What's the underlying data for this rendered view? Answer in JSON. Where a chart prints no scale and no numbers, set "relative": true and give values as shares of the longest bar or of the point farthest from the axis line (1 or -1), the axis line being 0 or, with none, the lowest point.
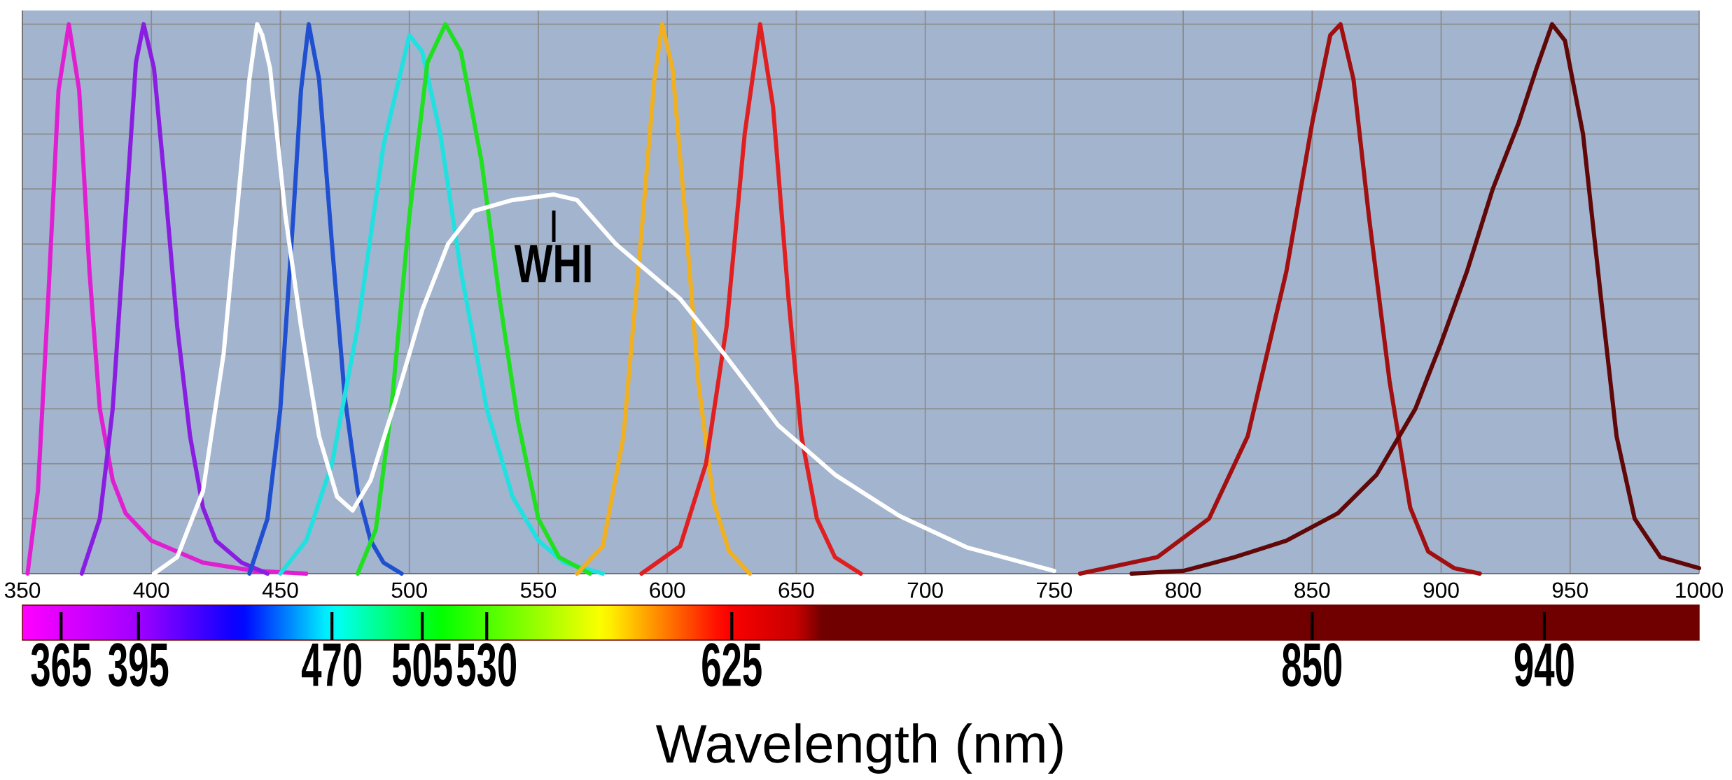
{
  "chart_data": {
    "type": "line",
    "relative": true,
    "xlabel": "Wavelength (nm)",
    "xlim": [
      350,
      1000
    ],
    "xticks": [
      350,
      400,
      450,
      500,
      550,
      600,
      650,
      700,
      750,
      800,
      850,
      900,
      950,
      1000
    ],
    "grid": true,
    "marker": "none",
    "line_style": "solid",
    "x2lim": [
      350,
      1000
    ],
    "x2ticks": [
      365,
      395,
      470,
      505,
      530,
      625,
      850,
      940
    ],
    "annotations": [
      {
        "text": "WHI",
        "x": 556,
        "y": 0.68
      }
    ],
    "series": [
      {
        "color": "#e020d0",
        "x": [
          352,
          356,
          360,
          364,
          368,
          372,
          376,
          380,
          385,
          390,
          400,
          420,
          440,
          460
        ],
        "values": [
          0,
          0.15,
          0.5,
          0.88,
          1.0,
          0.88,
          0.55,
          0.3,
          0.17,
          0.11,
          0.06,
          0.02,
          0.005,
          0
        ]
      },
      {
        "color": "#8a1ee0",
        "x": [
          373,
          380,
          385,
          390,
          394,
          397,
          401,
          405,
          410,
          415,
          420,
          425,
          435,
          445
        ],
        "values": [
          0,
          0.1,
          0.3,
          0.65,
          0.93,
          1.0,
          0.92,
          0.72,
          0.45,
          0.25,
          0.12,
          0.06,
          0.02,
          0
        ]
      },
      {
        "color": "#2050d0",
        "x": [
          438,
          445,
          450,
          455,
          458,
          461,
          465,
          470,
          475,
          480,
          485,
          490,
          497
        ],
        "values": [
          0,
          0.1,
          0.3,
          0.65,
          0.88,
          1.0,
          0.9,
          0.6,
          0.32,
          0.15,
          0.06,
          0.02,
          0
        ]
      },
      {
        "color": "#20e0e0",
        "x": [
          450,
          460,
          470,
          480,
          490,
          500,
          505,
          512,
          520,
          530,
          540,
          550,
          560,
          575
        ],
        "values": [
          0,
          0.06,
          0.2,
          0.45,
          0.78,
          0.98,
          0.95,
          0.8,
          0.55,
          0.3,
          0.14,
          0.06,
          0.02,
          0
        ]
      },
      {
        "color": "#20e020",
        "x": [
          480,
          487,
          493,
          500,
          507,
          514,
          520,
          528,
          535,
          542,
          550,
          558,
          570
        ],
        "values": [
          0,
          0.08,
          0.3,
          0.65,
          0.93,
          1.0,
          0.95,
          0.75,
          0.5,
          0.28,
          0.1,
          0.03,
          0
        ]
      },
      {
        "color": "#f0b020",
        "x": [
          565,
          575,
          583,
          590,
          595,
          598,
          602,
          607,
          612,
          618,
          624,
          632
        ],
        "values": [
          0,
          0.05,
          0.25,
          0.62,
          0.9,
          1.0,
          0.92,
          0.65,
          0.35,
          0.13,
          0.04,
          0
        ]
      },
      {
        "color": "#e02020",
        "x": [
          590,
          605,
          615,
          623,
          630,
          636,
          641,
          647,
          652,
          658,
          665,
          675
        ],
        "values": [
          0,
          0.05,
          0.2,
          0.45,
          0.8,
          1.0,
          0.85,
          0.5,
          0.25,
          0.1,
          0.03,
          0
        ]
      },
      {
        "color": "#ffffff",
        "x": [
          401,
          410,
          420,
          428,
          435,
          438,
          441,
          443,
          446,
          452,
          458,
          465,
          472,
          478,
          485,
          495,
          505,
          515,
          525,
          540,
          556,
          565,
          580,
          595,
          605,
          622,
          643,
          665,
          690,
          716,
          750
        ],
        "values": [
          0,
          0.03,
          0.15,
          0.4,
          0.75,
          0.9,
          1.0,
          0.98,
          0.92,
          0.65,
          0.45,
          0.25,
          0.14,
          0.115,
          0.17,
          0.32,
          0.48,
          0.6,
          0.66,
          0.68,
          0.69,
          0.68,
          0.6,
          0.54,
          0.5,
          0.4,
          0.27,
          0.18,
          0.105,
          0.048,
          0.005
        ]
      },
      {
        "color": "#a01010",
        "x": [
          760,
          790,
          810,
          825,
          840,
          850,
          857,
          861,
          866,
          872,
          880,
          888,
          895,
          905,
          915
        ],
        "values": [
          0,
          0.03,
          0.1,
          0.25,
          0.55,
          0.82,
          0.98,
          1.0,
          0.9,
          0.65,
          0.35,
          0.12,
          0.04,
          0.01,
          0
        ]
      },
      {
        "color": "#600808",
        "x": [
          780,
          800,
          812,
          820,
          840,
          860,
          875,
          890,
          900,
          910,
          920,
          930,
          937,
          943,
          948,
          955,
          962,
          968,
          975,
          985,
          1000
        ],
        "values": [
          0,
          0.005,
          0.02,
          0.03,
          0.06,
          0.11,
          0.18,
          0.3,
          0.42,
          0.55,
          0.7,
          0.82,
          0.92,
          1.0,
          0.97,
          0.8,
          0.5,
          0.25,
          0.1,
          0.03,
          0.01
        ]
      }
    ]
  }
}
